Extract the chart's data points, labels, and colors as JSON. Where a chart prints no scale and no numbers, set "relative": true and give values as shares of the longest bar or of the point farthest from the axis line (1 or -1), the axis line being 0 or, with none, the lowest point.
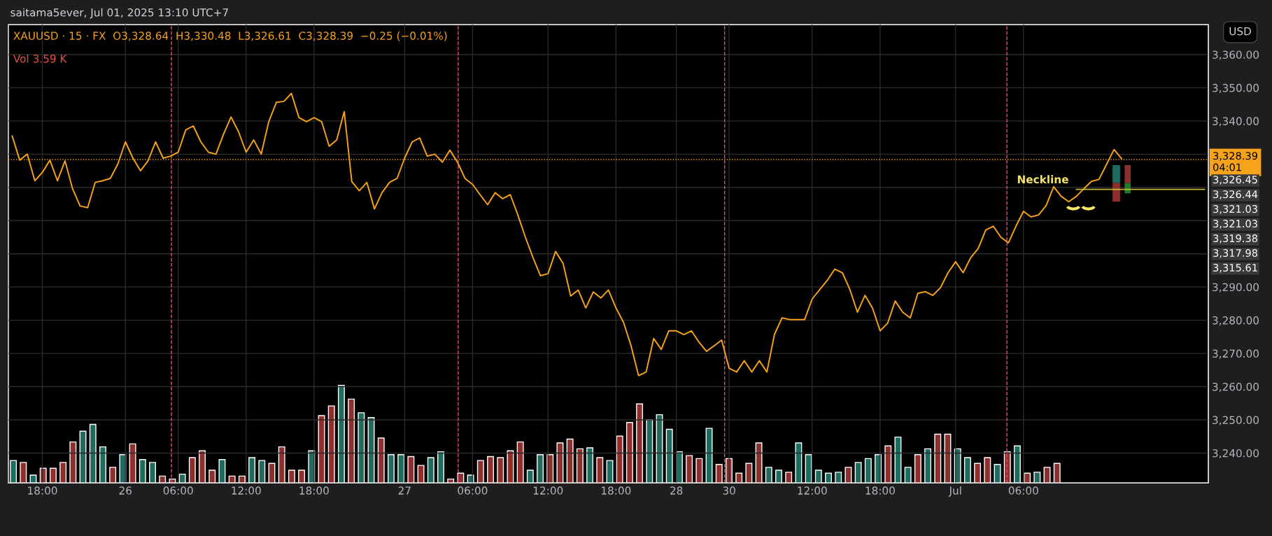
{
  "chart_data": [
    {
      "type": "line",
      "title": "XAUUSD · 15 · FX  O3,328.64  H3,330.48  L3,326.61  C3,328.39  −0.25 (−0.01%)",
      "subtitle": "saitama5ever, Jul 01, 2025 13:10 UTC+7",
      "annotations": [
        "Vol 3.59 K",
        "USD",
        "3,326.45",
        "3,326.44",
        "3,321.03",
        "3,321.03",
        "3,319.38",
        "3,317.98",
        "3,315.61",
        "Neckline"
      ],
      "categories": [
        null,
        null,
        null,
        null,
        "18:00",
        null,
        null,
        null,
        null,
        null,
        null,
        null,
        null,
        null,
        null,
        "26",
        null,
        null,
        null,
        null,
        null,
        null,
        "06:00",
        null,
        null,
        null,
        null,
        null,
        null,
        null,
        null,
        "12:00",
        null,
        null,
        null,
        null,
        null,
        null,
        null,
        null,
        "18:00",
        null,
        null,
        null,
        null,
        null,
        null,
        null,
        null,
        null,
        null,
        null,
        "27",
        null,
        null,
        null,
        null,
        null,
        null,
        null,
        null,
        "06:00",
        null,
        null,
        null,
        null,
        null,
        null,
        null,
        null,
        null,
        "12:00",
        null,
        null,
        null,
        null,
        null,
        null,
        null,
        null,
        "18:00",
        null,
        null,
        null,
        null,
        null,
        null,
        null,
        "28",
        null,
        null,
        null,
        null,
        null,
        null,
        "30",
        null,
        null,
        null,
        null,
        null,
        null,
        null,
        null,
        null,
        null,
        "12:00",
        null,
        null,
        null,
        null,
        null,
        null,
        null,
        null,
        "18:00",
        null,
        null,
        null,
        null,
        null,
        null,
        null,
        null,
        null,
        "Jul",
        null,
        null,
        null,
        null,
        null,
        null,
        null,
        null,
        "06:00",
        null,
        null,
        null,
        null,
        null,
        null,
        null,
        null,
        null,
        null,
        null,
        null,
        null,
        null,
        null,
        null,
        null,
        null,
        null,
        null,
        null,
        null,
        null,
        null
      ],
      "series": [
        {
          "type": "line",
          "color": "#f7a21b",
          "values": [
            3335.5,
            3328.2,
            3330,
            3322,
            3324.5,
            3328.2,
            3322,
            3328,
            3319.6,
            3314.4,
            3313.9,
            3321.5,
            3322,
            3322.7,
            3327,
            3333.7,
            3328.8,
            3325,
            3328,
            3333.7,
            3328.8,
            3329.4,
            3330.6,
            3337.3,
            3338.5,
            3333.7,
            3330.6,
            3330,
            3336,
            3341.2,
            3336.7,
            3330.6,
            3334.3,
            3330,
            3339.8,
            3345.6,
            3345.9,
            3348.3,
            3341,
            3339.8,
            3341,
            3339.8,
            3332.4,
            3334.3,
            3342.8,
            3321.7,
            3319,
            3321.5,
            3313.5,
            3318.4,
            3321.5,
            3322.7,
            3328.8,
            3333.7,
            3334.9,
            3329.4,
            3330,
            3327.6,
            3331.2,
            3327.6,
            3322.7,
            3320.9,
            3317.8,
            3314.8,
            3318.4,
            3316.6,
            3317.8,
            3311.7,
            3305,
            3298.9,
            3293.4,
            3294,
            3300.7,
            3297.1,
            3287.3,
            3289.1,
            3283.7,
            3288.5,
            3286.7,
            3289.1,
            3283.7,
            3279.4,
            3272.3,
            3263.3,
            3264.4,
            3274.5,
            3271.2,
            3276.8,
            3276.8,
            3275.7,
            3276.8,
            3273.4,
            3270.6,
            3272.3,
            3274,
            3265.5,
            3264.4,
            3267.8,
            3264.4,
            3267.8,
            3264.4,
            3275.7,
            3280.7,
            3280.2,
            3280.2,
            3280.2,
            3286.4,
            3289.2,
            3292,
            3295.4,
            3294.3,
            3289.2,
            3282.4,
            3287.5,
            3283.6,
            3276.8,
            3279.1,
            3285.8,
            3282.4,
            3280.7,
            3288.1,
            3288.6,
            3287.5,
            3289.8,
            3294.3,
            3297.6,
            3294.3,
            3298.8,
            3301.6,
            3307.2,
            3308.3,
            3305,
            3303.3,
            3308.3,
            3312.8,
            3311.1,
            3311.7,
            3314.5,
            3320.2,
            3317.3,
            3315.7,
            3317.3,
            3319.6,
            3321.8,
            3322.4,
            3326.9,
            3331.4,
            3328.6,
            null,
            null,
            null,
            null,
            null,
            null,
            null,
            null,
            null,
            null,
            null
          ]
        },
        {
          "type": "line",
          "color": "#c8b83a",
          "values": [
            null,
            null,
            null,
            null,
            null,
            null,
            null,
            null,
            null,
            null,
            null,
            null,
            null,
            null,
            null,
            null,
            null,
            null,
            null,
            null,
            null,
            null,
            null,
            null,
            null,
            null,
            null,
            null,
            null,
            null,
            null,
            null,
            null,
            null,
            null,
            null,
            null,
            null,
            null,
            null,
            null,
            null,
            null,
            null,
            null,
            null,
            null,
            null,
            null,
            null,
            null,
            null,
            null,
            null,
            null,
            null,
            null,
            null,
            null,
            null,
            null,
            null,
            null,
            null,
            null,
            null,
            null,
            null,
            null,
            null,
            null,
            null,
            null,
            null,
            null,
            null,
            null,
            null,
            null,
            null,
            null,
            null,
            null,
            null,
            null,
            null,
            null,
            null,
            null,
            null,
            null,
            null,
            null,
            null,
            null,
            null,
            null,
            null,
            null,
            null,
            null,
            null,
            null,
            null,
            null,
            null,
            null,
            null,
            null,
            null,
            null,
            null,
            null,
            null,
            null,
            null,
            null,
            null,
            null,
            null,
            null,
            null,
            null,
            null,
            null,
            null,
            null,
            null,
            null,
            null,
            null,
            null,
            null,
            null,
            null,
            null,
            null,
            null,
            null,
            null,
            null,
            3319.4,
            3319.4,
            3319.4,
            3319.4,
            3319.4,
            3319.4,
            3319.4,
            3319.4,
            3319.4,
            3319.4,
            3319.4,
            3319.4,
            3319.4,
            3319.4,
            3319.4,
            3319.4,
            3319.4,
            3319.4
          ]
        }
      ],
      "ylim": [
        3231,
        3369
      ],
      "yticks": [
        {
          "value": 3240,
          "label": "3,240.00"
        },
        {
          "value": 3250,
          "label": "3,250.00"
        },
        {
          "value": 3260,
          "label": "3,260.00"
        },
        {
          "value": 3270,
          "label": "3,270.00"
        },
        {
          "value": 3280,
          "label": "3,280.00"
        },
        {
          "value": 3290,
          "label": "3,290.00"
        },
        {
          "value": 3300,
          "label": null
        },
        {
          "value": 3310,
          "label": null
        },
        {
          "value": 3320,
          "label": null
        },
        {
          "value": 3330,
          "label": null
        },
        {
          "value": 3340,
          "label": "3,340.00"
        },
        {
          "value": 3350,
          "label": "3,350.00"
        },
        {
          "value": 3360,
          "label": "3,360.00"
        }
      ],
      "ref_lines": [
        {
          "axis": "y",
          "value": 3328.39,
          "label": "3,328.39\n04:01",
          "color": "#f7a21b",
          "line_style": "dotted"
        }
      ],
      "grid": true,
      "legend": false,
      "marker": "none",
      "line_style": "solid"
    },
    {
      "type": "bar",
      "relative": true,
      "categories": [
        null,
        null,
        null,
        null,
        null,
        null,
        null,
        null,
        null,
        null,
        null,
        null,
        null,
        null,
        null,
        null,
        null,
        null,
        null,
        null,
        null,
        null,
        null,
        null,
        null,
        null,
        null,
        null,
        null,
        null,
        null,
        null,
        null,
        null,
        null,
        null,
        null,
        null,
        null,
        null,
        null,
        null,
        null,
        null,
        null,
        null,
        null,
        null,
        null,
        null,
        null,
        null,
        null,
        null,
        null,
        null,
        null,
        null,
        null,
        null,
        null,
        null,
        null,
        null,
        null,
        null,
        null,
        null,
        null,
        null,
        null,
        null,
        null,
        null,
        null,
        null,
        null,
        null,
        null,
        null,
        null,
        null,
        null,
        null,
        null,
        null,
        null,
        null,
        null,
        null,
        null,
        null,
        null,
        null,
        null,
        null,
        null,
        null,
        null,
        null,
        null,
        null,
        null,
        null,
        null,
        null
      ],
      "values": [
        0.23,
        0.21,
        0.08,
        0.15,
        0.15,
        0.21,
        0.42,
        0.53,
        0.6,
        0.37,
        0.16,
        0.29,
        0.4,
        0.24,
        0.21,
        0.07,
        0.04,
        0.09,
        0.26,
        0.33,
        0.13,
        0.24,
        0.07,
        0.07,
        0.26,
        0.23,
        0.2,
        0.37,
        0.13,
        0.13,
        0.33,
        0.69,
        0.79,
        1.0,
        0.86,
        0.72,
        0.67,
        0.46,
        0.29,
        0.29,
        0.27,
        0.18,
        0.26,
        0.32,
        0.04,
        0.1,
        0.08,
        0.23,
        0.27,
        0.26,
        0.33,
        0.42,
        0.13,
        0.29,
        0.29,
        0.41,
        0.45,
        0.35,
        0.36,
        0.26,
        0.23,
        0.48,
        0.62,
        0.81,
        0.65,
        0.7,
        0.55,
        0.32,
        0.28,
        0.25,
        0.56,
        0.19,
        0.25,
        0.1,
        0.2,
        0.41,
        0.16,
        0.13,
        0.11,
        0.41,
        0.29,
        0.13,
        0.1,
        0.11,
        0.16,
        0.21,
        0.25,
        0.29,
        0.38,
        0.47,
        0.16,
        0.29,
        0.35,
        0.5,
        0.5,
        0.35,
        0.26,
        0.2,
        0.26,
        0.19,
        0.32,
        0.38,
        0.1,
        0.11,
        0.16,
        0.2
      ],
      "colors": [
        "#1f6b5f",
        "#8e2f2d",
        "#1f6b5f",
        "#8e2f2d",
        "#8e2f2d",
        "#8e2f2d",
        "#8e2f2d",
        "#1f6b5f",
        "#1f6b5f",
        "#1f6b5f",
        "#8e2f2d",
        "#1f6b5f",
        "#8e2f2d",
        "#1f6b5f",
        "#1f6b5f",
        "#8e2f2d",
        "#8e2f2d",
        "#1f6b5f",
        "#8e2f2d",
        "#8e2f2d",
        "#8e2f2d",
        "#1f6b5f",
        "#8e2f2d",
        "#8e2f2d",
        "#1f6b5f",
        "#1f6b5f",
        "#8e2f2d",
        "#8e2f2d",
        "#8e2f2d",
        "#8e2f2d",
        "#1f6b5f",
        "#8e2f2d",
        "#8e2f2d",
        "#1f6b5f",
        "#8e2f2d",
        "#1f6b5f",
        "#1f6b5f",
        "#8e2f2d",
        "#1f6b5f",
        "#1f6b5f",
        "#8e2f2d",
        "#8e2f2d",
        "#1f6b5f",
        "#1f6b5f",
        "#8e2f2d",
        "#8e2f2d",
        "#1f6b5f",
        "#8e2f2d",
        "#8e2f2d",
        "#8e2f2d",
        "#8e2f2d",
        "#8e2f2d",
        "#1f6b5f",
        "#1f6b5f",
        "#8e2f2d",
        "#8e2f2d",
        "#8e2f2d",
        "#8e2f2d",
        "#1f6b5f",
        "#8e2f2d",
        "#1f6b5f",
        "#8e2f2d",
        "#8e2f2d",
        "#8e2f2d",
        "#1f6b5f",
        "#1f6b5f",
        "#1f6b5f",
        "#1f6b5f",
        "#8e2f2d",
        "#8e2f2d",
        "#1f6b5f",
        "#8e2f2d",
        "#8e2f2d",
        "#8e2f2d",
        "#8e2f2d",
        "#8e2f2d",
        "#1f6b5f",
        "#1f6b5f",
        "#8e2f2d",
        "#1f6b5f",
        "#1f6b5f",
        "#1f6b5f",
        "#1f6b5f",
        "#1f6b5f",
        "#8e2f2d",
        "#1f6b5f",
        "#1f6b5f",
        "#1f6b5f",
        "#8e2f2d",
        "#1f6b5f",
        "#1f6b5f",
        "#8e2f2d",
        "#1f6b5f",
        "#8e2f2d",
        "#8e2f2d",
        "#1f6b5f",
        "#1f6b5f",
        "#8e2f2d",
        "#8e2f2d",
        "#1f6b5f",
        "#8e2f2d",
        "#1f6b5f",
        "#8e2f2d",
        "#1f6b5f",
        "#8e2f2d",
        "#8e2f2d"
      ]
    }
  ]
}
